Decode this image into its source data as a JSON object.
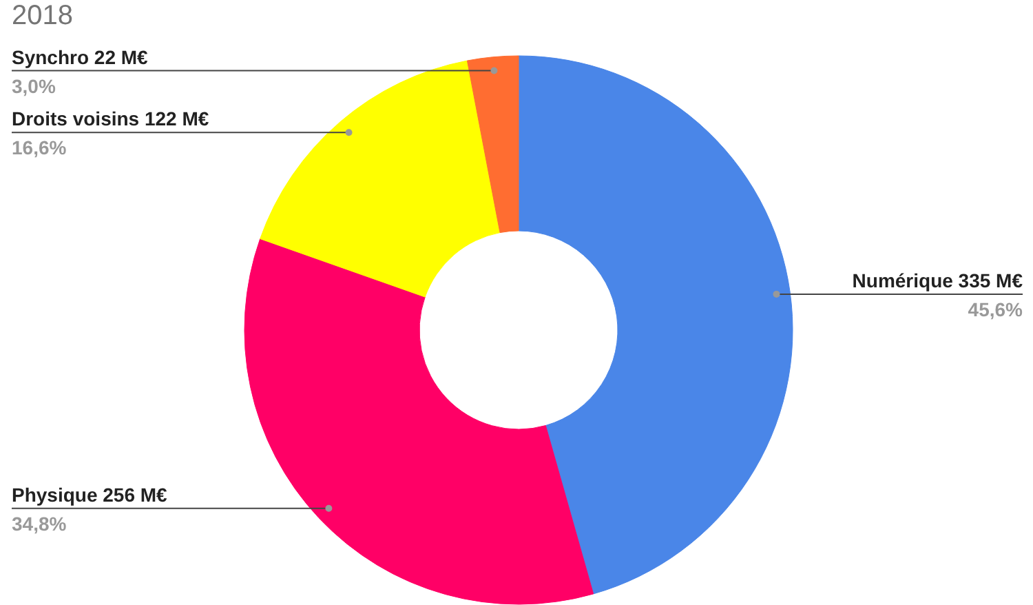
{
  "chart_data": {
    "type": "donut",
    "title": "2018",
    "categories": [
      "Numérique 335 M€",
      "Physique 256 M€",
      "Droits voisins 122 M€",
      "Synchro 22 M€"
    ],
    "values": [
      45.6,
      34.8,
      16.6,
      3.0
    ],
    "colors": [
      "#4a86e8",
      "#ff0066",
      "#ffff00",
      "#ff6d31"
    ],
    "value_labels": [
      "45,6%",
      "34,8%",
      "16,6%",
      "3,0%"
    ]
  }
}
